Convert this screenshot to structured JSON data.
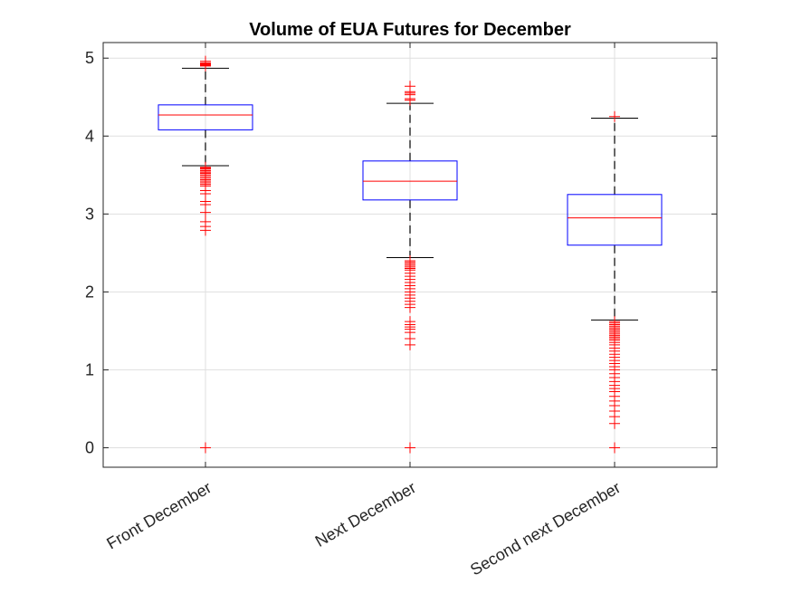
{
  "chart_data": {
    "type": "boxplot",
    "title": "Volume of EUA Futures for December",
    "xlabel": "",
    "ylabel": "",
    "ylim": [
      -0.25,
      5.2
    ],
    "yticks": [
      0,
      1,
      2,
      3,
      4,
      5
    ],
    "grid": true,
    "colors": {
      "box": "#0000ff",
      "median": "#ff0000",
      "whisker": "#000000",
      "outlier": "#ff0000",
      "grid": "#dfdfdf"
    },
    "categories": [
      "Front December",
      "Next December",
      "Second next December"
    ],
    "boxes": [
      {
        "name": "Front December",
        "lower_whisker": 3.62,
        "q1": 4.08,
        "median": 4.27,
        "q3": 4.4,
        "upper_whisker": 4.87,
        "outliers": [
          4.9,
          4.91,
          4.92,
          4.93,
          4.94,
          4.96,
          3.6,
          3.59,
          3.58,
          3.56,
          3.55,
          3.53,
          3.52,
          3.5,
          3.48,
          3.46,
          3.44,
          3.42,
          3.4,
          3.38,
          3.36,
          3.3,
          3.26,
          3.16,
          3.12,
          3.02,
          2.9,
          2.84,
          2.79,
          0.0
        ]
      },
      {
        "name": "Next December",
        "lower_whisker": 2.44,
        "q1": 3.18,
        "median": 3.42,
        "q3": 3.68,
        "upper_whisker": 4.42,
        "outliers": [
          4.46,
          4.48,
          4.53,
          4.55,
          4.57,
          4.64,
          2.4,
          2.38,
          2.36,
          2.34,
          2.32,
          2.3,
          2.28,
          2.24,
          2.2,
          2.16,
          2.12,
          2.08,
          2.04,
          2.0,
          1.96,
          1.92,
          1.88,
          1.84,
          1.8,
          1.62,
          1.58,
          1.55,
          1.52,
          1.48,
          1.4,
          1.32,
          0.0
        ]
      },
      {
        "name": "Second next December",
        "lower_whisker": 1.64,
        "q1": 2.6,
        "median": 2.95,
        "q3": 3.25,
        "upper_whisker": 4.23,
        "outliers": [
          4.25,
          1.62,
          1.6,
          1.58,
          1.56,
          1.54,
          1.52,
          1.5,
          1.48,
          1.46,
          1.44,
          1.42,
          1.4,
          1.38,
          1.35,
          1.32,
          1.28,
          1.24,
          1.2,
          1.16,
          1.12,
          1.08,
          1.04,
          1.0,
          0.95,
          0.9,
          0.85,
          0.8,
          0.76,
          0.72,
          0.66,
          0.6,
          0.54,
          0.47,
          0.4,
          0.31,
          0.0
        ]
      }
    ]
  }
}
